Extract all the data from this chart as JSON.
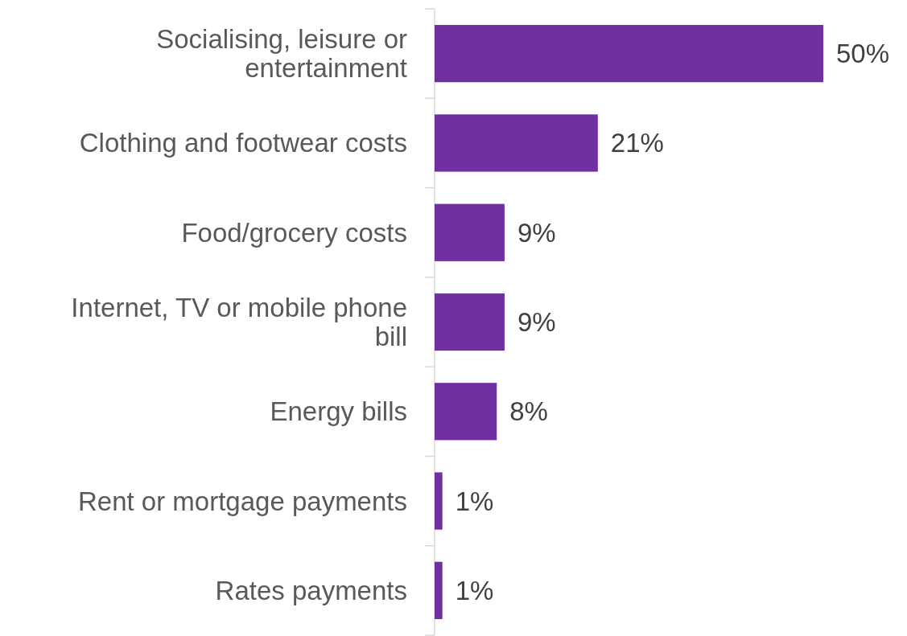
{
  "chart_data": {
    "type": "bar",
    "orientation": "horizontal",
    "relative": false,
    "categories": [
      "Socialising, leisure or entertainment",
      "Clothing and footwear costs",
      "Food/grocery costs",
      "Internet, TV or mobile phone bill",
      "Energy bills",
      "Rent or mortgage payments",
      "Rates payments"
    ],
    "values": [
      50,
      21,
      9,
      9,
      8,
      1,
      1
    ],
    "value_labels": [
      "50%",
      "21%",
      "9%",
      "9%",
      "8%",
      "1%",
      "1%"
    ],
    "color": "#7030a0"
  }
}
